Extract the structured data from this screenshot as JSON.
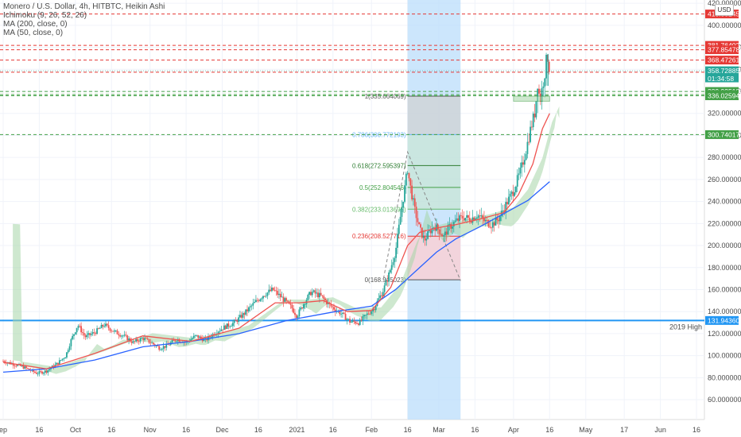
{
  "legend": {
    "title": "Monero / U.S. Dollar, 4h, HITBTC, Heikin Ashi",
    "ichimoku": "Ichimoku (9, 26, 52, 26)",
    "ma200": "MA (200, close, 0)",
    "ma50": "MA (50, close, 0)"
  },
  "currency_badge": "USD",
  "colors": {
    "up": "#26a69a",
    "down": "#ef5350",
    "ma200": "#2962ff",
    "ma50": "#ef5350",
    "cloud_up": "#a5d6a7",
    "cloud_down": "#ef9a9a",
    "hline_red": "#e53935",
    "hline_green": "#43a047",
    "support": "#2196f3",
    "projection": "#bbdefb"
  },
  "chart_data": {
    "type": "candlestick",
    "title": "Monero / U.S. Dollar, 4h, HITBTC, Heikin Ashi",
    "y_axis": {
      "ticks": [
        "420.000000",
        "400.000000",
        "380.000000",
        "360.000000",
        "340.000000",
        "320.000000",
        "300.000000",
        "280.000000",
        "260.000000",
        "240.000000",
        "220.000000",
        "200.000000",
        "180.000000",
        "160.000000",
        "140.000000",
        "120.000000",
        "100.000000",
        "80.000000",
        "60.000000"
      ],
      "ylim": [
        42,
        423
      ]
    },
    "x_axis": {
      "ticks": [
        "ep",
        "16",
        "Oct",
        "16",
        "Nov",
        "16",
        "Dec",
        "16",
        "2021",
        "16",
        "Feb",
        "16",
        "Mar",
        "16",
        "Apr",
        "16",
        "May",
        "17",
        "Jun",
        "16"
      ],
      "tick_days": [
        -8,
        7,
        22,
        37,
        53,
        68,
        83,
        98,
        114,
        129,
        145,
        160,
        173,
        188,
        204,
        219,
        234,
        250,
        265,
        280
      ]
    },
    "price_levels": [
      {
        "label": "410.301453",
        "value": 410.301453,
        "style": "red"
      },
      {
        "label": "381.764022",
        "value": 381.764022,
        "style": "red"
      },
      {
        "label": "377.854785",
        "value": 377.854785,
        "style": "red"
      },
      {
        "label": "368.472616",
        "value": 368.472616,
        "style": "red"
      },
      {
        "label": "357.389024",
        "value": 357.389024,
        "style": "red"
      },
      {
        "label": "339.935186",
        "value": 339.935186,
        "style": "green"
      },
      {
        "label": "337.101923",
        "value": 337.101923,
        "style": "green"
      },
      {
        "label": "336.025949",
        "value": 336.025949,
        "style": "green"
      },
      {
        "label": "300.740174",
        "value": 300.740174,
        "style": "green"
      }
    ],
    "current_price": {
      "label": "358.728855",
      "countdown": "01:34:58",
      "value": 358.728855
    },
    "support": {
      "label": "131.943607",
      "note": "2019 High",
      "value": 131.943607
    },
    "fibonacci": [
      {
        "label": "1(335.664069)",
        "value": 335.664069
      },
      {
        "label": "0.786(300.772193)",
        "value": 300.772193
      },
      {
        "label": "0.618(272.595397)",
        "value": 272.595397
      },
      {
        "label": "0.5(252.804546)",
        "value": 252.804546
      },
      {
        "label": "0.382(233.013695)",
        "value": 233.013695
      },
      {
        "label": "0.236(208.527716)",
        "value": 208.527716
      },
      {
        "label": "0(168.945023)",
        "value": 168.945023
      }
    ],
    "price_path": [
      [
        -8,
        95
      ],
      [
        0,
        90
      ],
      [
        6,
        84
      ],
      [
        10,
        86
      ],
      [
        14,
        92
      ],
      [
        18,
        100
      ],
      [
        20,
        113
      ],
      [
        23,
        128
      ],
      [
        26,
        117
      ],
      [
        30,
        121
      ],
      [
        34,
        128
      ],
      [
        38,
        122
      ],
      [
        42,
        118
      ],
      [
        46,
        112
      ],
      [
        50,
        116
      ],
      [
        54,
        111
      ],
      [
        57,
        107
      ],
      [
        60,
        109
      ],
      [
        64,
        115
      ],
      [
        68,
        112
      ],
      [
        72,
        118
      ],
      [
        76,
        114
      ],
      [
        80,
        121
      ],
      [
        84,
        126
      ],
      [
        88,
        130
      ],
      [
        92,
        138
      ],
      [
        96,
        147
      ],
      [
        100,
        155
      ],
      [
        104,
        160
      ],
      [
        108,
        152
      ],
      [
        112,
        143
      ],
      [
        114,
        136
      ],
      [
        117,
        148
      ],
      [
        120,
        158
      ],
      [
        124,
        154
      ],
      [
        128,
        145
      ],
      [
        132,
        139
      ],
      [
        136,
        131
      ],
      [
        140,
        130
      ],
      [
        142,
        135
      ],
      [
        146,
        143
      ],
      [
        150,
        160
      ],
      [
        152,
        172
      ],
      [
        155,
        195
      ],
      [
        157,
        226
      ],
      [
        159,
        255
      ],
      [
        160,
        270
      ],
      [
        161,
        255
      ],
      [
        163,
        232
      ],
      [
        165,
        215
      ],
      [
        167,
        205
      ],
      [
        169,
        212
      ],
      [
        171,
        218
      ],
      [
        173,
        214
      ],
      [
        175,
        208
      ],
      [
        177,
        216
      ],
      [
        180,
        222
      ],
      [
        183,
        226
      ],
      [
        186,
        224
      ],
      [
        189,
        228
      ],
      [
        192,
        222
      ],
      [
        195,
        219
      ],
      [
        198,
        225
      ],
      [
        201,
        238
      ],
      [
        204,
        250
      ],
      [
        207,
        268
      ],
      [
        209,
        285
      ],
      [
        211,
        305
      ],
      [
        213,
        322
      ],
      [
        214,
        348
      ],
      [
        215,
        331
      ],
      [
        216,
        344
      ],
      [
        217,
        357
      ],
      [
        218,
        374
      ],
      [
        219,
        359
      ]
    ],
    "ma50": [
      [
        -8,
        94
      ],
      [
        10,
        88
      ],
      [
        30,
        102
      ],
      [
        50,
        118
      ],
      [
        70,
        113
      ],
      [
        90,
        125
      ],
      [
        105,
        148
      ],
      [
        115,
        148
      ],
      [
        125,
        150
      ],
      [
        135,
        140
      ],
      [
        145,
        141
      ],
      [
        153,
        162
      ],
      [
        160,
        200
      ],
      [
        165,
        212
      ],
      [
        172,
        216
      ],
      [
        180,
        219
      ],
      [
        190,
        224
      ],
      [
        200,
        230
      ],
      [
        206,
        246
      ],
      [
        212,
        274
      ],
      [
        216,
        306
      ],
      [
        219,
        320
      ]
    ],
    "ma200": [
      [
        -8,
        85
      ],
      [
        10,
        88
      ],
      [
        30,
        96
      ],
      [
        50,
        108
      ],
      [
        70,
        113
      ],
      [
        90,
        120
      ],
      [
        110,
        132
      ],
      [
        130,
        140
      ],
      [
        145,
        145
      ],
      [
        155,
        160
      ],
      [
        165,
        180
      ],
      [
        172,
        194
      ],
      [
        180,
        206
      ],
      [
        190,
        217
      ],
      [
        200,
        229
      ],
      [
        210,
        241
      ],
      [
        219,
        258
      ]
    ],
    "projection": {
      "x_start_day": 160,
      "x_end_day": 182,
      "entry": 168.945023,
      "target": 335.664069
    },
    "shapes": {
      "rect_top": 335.664069,
      "rect_bottom": 300.740174,
      "rect_x": [
        204,
        219
      ]
    }
  }
}
